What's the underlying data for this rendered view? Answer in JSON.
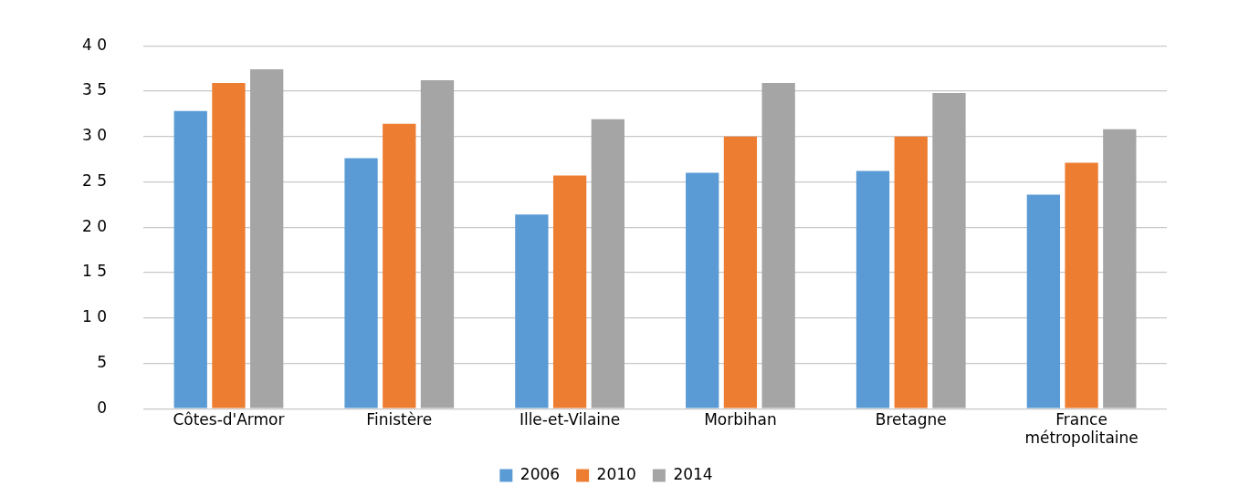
{
  "chart_data": {
    "type": "bar",
    "categories": [
      "Côtes-d'Armor",
      "Finistère",
      "Ille-et-Vilaine",
      "Morbihan",
      "Bretagne",
      "France métropolitaine"
    ],
    "series": [
      {
        "name": "2006",
        "color": "#5b9bd5",
        "values": [
          32.8,
          27.6,
          21.4,
          26.0,
          26.2,
          23.6
        ]
      },
      {
        "name": "2010",
        "color": "#ed7d31",
        "values": [
          35.9,
          31.4,
          25.7,
          30.0,
          30.0,
          27.1
        ]
      },
      {
        "name": "2014",
        "color": "#a5a5a5",
        "values": [
          37.4,
          36.2,
          31.9,
          35.9,
          34.8,
          30.8
        ]
      }
    ],
    "ylim": [
      0,
      40
    ],
    "yticks": [
      {
        "value": 0,
        "label": "0"
      },
      {
        "value": 5,
        "label": "5"
      },
      {
        "value": 10,
        "label": "1 0"
      },
      {
        "value": 15,
        "label": "1 5"
      },
      {
        "value": 20,
        "label": "2 0"
      },
      {
        "value": 25,
        "label": "2 5"
      },
      {
        "value": 30,
        "label": "3 0"
      },
      {
        "value": 35,
        "label": "3 5"
      },
      {
        "value": 40,
        "label": "4 0"
      }
    ],
    "grid": "y",
    "legend": "bottom"
  }
}
